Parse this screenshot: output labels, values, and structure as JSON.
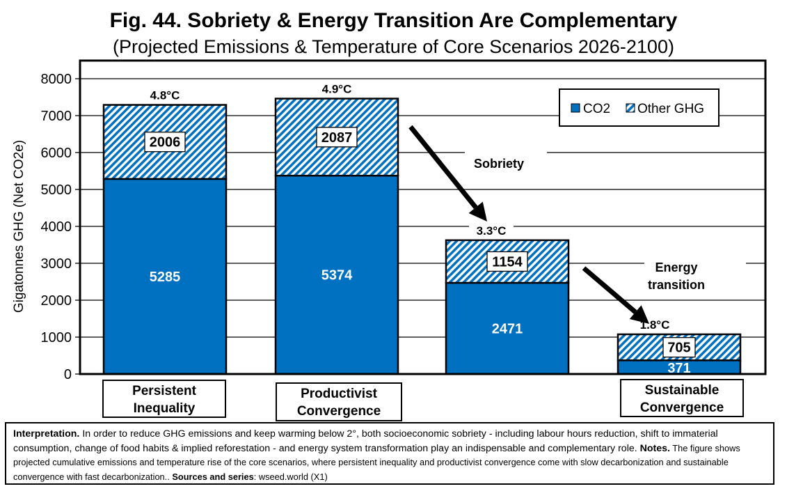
{
  "chart_data": {
    "type": "bar",
    "stacked": true,
    "title": "Fig. 44. Sobriety & Energy Transition Are Complementary",
    "subtitle": "(Projected Emissions & Temperature of Core Scenarios 2026-2100)",
    "xlabel": "",
    "ylabel": "Gigatonnes GHG (Net CO2e)",
    "ylim": [
      0,
      8000
    ],
    "yticks": [
      0,
      1000,
      2000,
      3000,
      4000,
      5000,
      6000,
      7000,
      8000
    ],
    "grid": true,
    "legend_position": "top-right",
    "categories": [
      "Persistent Inequality",
      "Productivist Convergence",
      "",
      "Sustainable Convergence"
    ],
    "series": [
      {
        "name": "CO2",
        "color": "#0070C0",
        "pattern": "solid",
        "values": [
          5285,
          5374,
          2471,
          371
        ]
      },
      {
        "name": "Other GHG",
        "color": "#0070C0",
        "pattern": "diagonal-hatch",
        "values": [
          2006,
          2087,
          1154,
          705
        ]
      }
    ],
    "temperature_labels": [
      "4.8°C",
      "4.9°C",
      "3.3°C",
      "1.8°C"
    ],
    "annotations": [
      {
        "text": "Sobriety",
        "type": "arrow",
        "from_bar": 1,
        "to_bar": 2
      },
      {
        "text": "Energy transition",
        "lines": [
          "Energy",
          "transition"
        ],
        "type": "arrow",
        "from_bar": 2,
        "to_bar": 3
      }
    ]
  },
  "category_boxes": [
    {
      "lines": [
        "Persistent",
        "Inequality"
      ]
    },
    {
      "lines": [
        "Productivist",
        "Convergence"
      ]
    },
    {
      "lines": [
        "Sustainable",
        "Convergence"
      ]
    }
  ],
  "notes": {
    "interpretation_label": "Interpretation.",
    "interpretation_text": " In order to reduce GHG emissions and keep warming below 2°, both socioeconomic sobriety - including labour hours reduction, shift to immaterial consumption, change of food habits & implied reforestation - and energy system transformation play an indispensable and complementary role.  ",
    "notes_label": "Notes.",
    "notes_text": " The figure shows projected cumulative emissions and temperature rise of the core scenarios, where persistent inequality and productivist convergence come with slow decarbonization and sustainable convergence with fast decarbonization.. ",
    "sources_label": "Sources and series",
    "sources_text": ": wseed.world (X1)"
  }
}
